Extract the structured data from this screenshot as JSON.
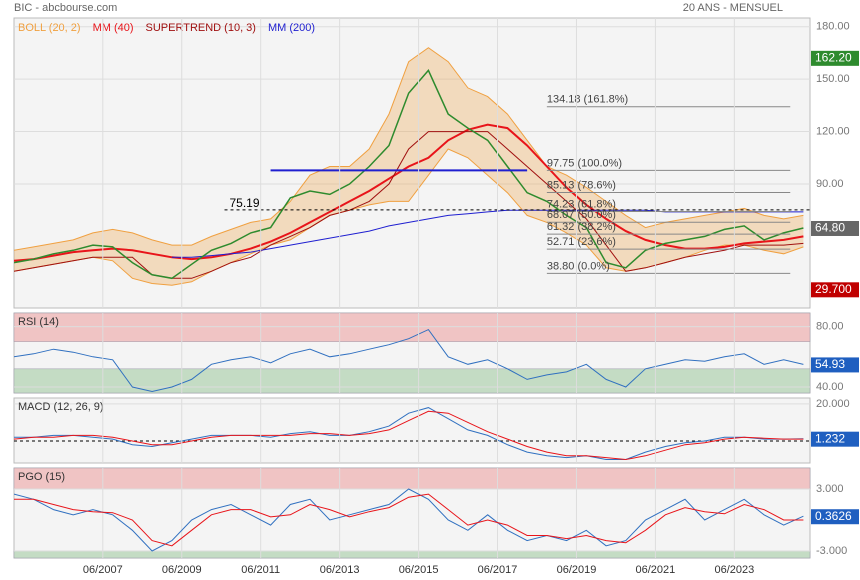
{
  "header": {
    "title": "BIC - abcbourse.com",
    "period": "20 ANS - MENSUEL"
  },
  "chart_data": [
    {
      "type": "line",
      "x": [
        "2005-03",
        "2005-09",
        "2006-03",
        "2006-09",
        "2007-03",
        "2007-09",
        "2008-03",
        "2008-09",
        "2009-03",
        "2009-09",
        "2010-03",
        "2010-09",
        "2011-03",
        "2011-09",
        "2012-03",
        "2012-09",
        "2013-03",
        "2013-09",
        "2014-03",
        "2014-09",
        "2015-03",
        "2015-09",
        "2016-03",
        "2016-09",
        "2017-03",
        "2017-09",
        "2018-03",
        "2018-09",
        "2019-03",
        "2019-09",
        "2020-03",
        "2020-09",
        "2021-03",
        "2021-09",
        "2022-03",
        "2022-09",
        "2023-03",
        "2023-09",
        "2024-03",
        "2024-09",
        "2025-03"
      ],
      "xlim": [
        "2005-03",
        "2025-05"
      ],
      "ylim": [
        19,
        185
      ],
      "yticks": [
        {
          "value": 180,
          "label": "180.00"
        },
        {
          "value": 150,
          "label": "150.00"
        },
        {
          "value": 120,
          "label": "120.00"
        },
        {
          "value": 90,
          "label": "90.00"
        }
      ],
      "series": [
        {
          "type": "band",
          "name": "BOLL (20, 2)",
          "color": "#f0a040",
          "upper": [
            52,
            54,
            56,
            58,
            62,
            64,
            62,
            58,
            55,
            55,
            60,
            64,
            68,
            70,
            80,
            95,
            100,
            100,
            110,
            130,
            160,
            168,
            160,
            145,
            140,
            130,
            115,
            100,
            95,
            88,
            80,
            72,
            65,
            68,
            70,
            72,
            74,
            76,
            72,
            70,
            72
          ],
          "lower": [
            40,
            42,
            44,
            46,
            48,
            46,
            36,
            33,
            32,
            34,
            40,
            45,
            50,
            55,
            58,
            65,
            72,
            75,
            78,
            80,
            80,
            95,
            110,
            105,
            95,
            85,
            72,
            68,
            62,
            55,
            42,
            40,
            42,
            45,
            48,
            52,
            55,
            55,
            52,
            50,
            54
          ]
        },
        {
          "name": "MM (40)",
          "color": "#e8141a",
          "width": 2,
          "values": [
            46,
            47,
            49,
            51,
            52,
            53,
            52,
            50,
            48,
            47,
            48,
            50,
            53,
            57,
            62,
            68,
            74,
            80,
            86,
            93,
            100,
            105,
            115,
            121,
            124,
            122,
            112,
            100,
            88,
            78,
            70,
            63,
            58,
            55,
            53,
            53,
            54,
            56,
            57,
            58,
            60
          ]
        },
        {
          "name": "SUPERTREND (10, 3)",
          "color": "#a01010",
          "width": 1,
          "values": [
            40,
            42,
            44,
            46,
            48,
            48,
            48,
            38,
            36,
            36,
            40,
            45,
            48,
            55,
            60,
            65,
            72,
            75,
            80,
            90,
            110,
            120,
            120,
            120,
            120,
            110,
            100,
            90,
            80,
            70,
            55,
            40,
            42,
            45,
            48,
            50,
            52,
            55,
            55,
            55,
            56
          ]
        },
        {
          "name": "MM (200)",
          "color": "#1f1fd0",
          "width": 1,
          "values": [
            null,
            null,
            null,
            null,
            null,
            null,
            null,
            null,
            48,
            48,
            49,
            50,
            51,
            53,
            55,
            57,
            59,
            61,
            63,
            66,
            68,
            70,
            72,
            73,
            74,
            75,
            75,
            75,
            75,
            75,
            75,
            75,
            75,
            74,
            74,
            74,
            74,
            74,
            74,
            74,
            74
          ]
        },
        {
          "color": "#2e8b2e",
          "width": 1.5,
          "values": [
            45,
            47,
            50,
            52,
            55,
            54,
            45,
            38,
            36,
            44,
            52,
            56,
            62,
            65,
            82,
            86,
            84,
            90,
            100,
            112,
            142,
            155,
            130,
            122,
            115,
            100,
            85,
            80,
            72,
            65,
            45,
            42,
            52,
            56,
            58,
            60,
            64,
            66,
            58,
            62,
            64.8
          ]
        }
      ],
      "levels": [
        {
          "value": 75.19,
          "label": "75.19",
          "from": "2010-07",
          "to": "2025-05",
          "color": "#000000",
          "dashed": true
        },
        {
          "value": 97.75,
          "from": "2011-09",
          "to": "2018-03",
          "color": "#1f1fd0",
          "width": 2
        }
      ],
      "fib": {
        "from": "2018-09",
        "to": "2024-11",
        "color": "#888888",
        "levels": [
          {
            "value": 134.18,
            "label": "134.18 (161.8%)"
          },
          {
            "value": 97.75,
            "label": "97.75 (100.0%)"
          },
          {
            "value": 85.13,
            "label": "85.13 (78.6%)"
          },
          {
            "value": 74.23,
            "label": "74.23 (61.8%)"
          },
          {
            "value": 68.07,
            "label": "68.07 (50.0%)"
          },
          {
            "value": 61.32,
            "label": "61.32 (38.2%)"
          },
          {
            "value": 52.71,
            "label": "52.71 (23.6%)"
          },
          {
            "value": 38.8,
            "label": "38.80 (0.0%)"
          }
        ]
      },
      "markers": [
        {
          "value": 162.2,
          "label": "162.20",
          "color": "#2e8b2e"
        },
        {
          "value": 64.8,
          "label": "64.80",
          "color": "#666666"
        },
        {
          "value": 29.7,
          "label": "29.700",
          "color": "#c00000"
        }
      ]
    },
    {
      "type": "line",
      "title": "RSI (14)",
      "ylim": [
        36,
        89
      ],
      "yticks": [
        {
          "value": 80,
          "label": "80.00"
        },
        {
          "value": 40,
          "label": "40.00"
        }
      ],
      "zones": [
        {
          "from": 70,
          "to": 89,
          "color": "#f0c4c4"
        },
        {
          "from": 36,
          "to": 52,
          "color": "#c4dcc4"
        }
      ],
      "series": [
        {
          "color": "#3070c0",
          "width": 1,
          "values": [
            60,
            62,
            65,
            63,
            60,
            58,
            40,
            37,
            40,
            45,
            55,
            58,
            60,
            56,
            62,
            65,
            60,
            62,
            65,
            68,
            72,
            78,
            60,
            55,
            58,
            52,
            45,
            48,
            50,
            55,
            45,
            40,
            52,
            55,
            58,
            57,
            60,
            62,
            55,
            58,
            54.93
          ]
        }
      ],
      "markers": [
        {
          "value": 54.93,
          "label": "54.93",
          "color": "#1f5fc0"
        }
      ]
    },
    {
      "type": "line",
      "title": "MACD (12, 26, 9)",
      "ylim": [
        -11.9,
        23.2
      ],
      "yticks": [
        {
          "value": 20,
          "label": "20.000"
        }
      ],
      "hline": 0,
      "series": [
        {
          "color": "#3070c0",
          "width": 1,
          "values": [
            2,
            2,
            3,
            3,
            2,
            1,
            -2,
            -3,
            -1,
            1,
            3,
            3,
            3,
            2,
            4,
            5,
            3,
            3,
            5,
            8,
            15,
            18,
            12,
            6,
            3,
            -2,
            -6,
            -8,
            -9,
            -8,
            -10,
            -10,
            -6,
            -3,
            -1,
            0,
            2,
            2,
            1,
            1,
            1.232
          ]
        },
        {
          "color": "#e8141a",
          "width": 1,
          "values": [
            1,
            2,
            2,
            3,
            3,
            2,
            0,
            -2,
            -2,
            0,
            2,
            3,
            3,
            3,
            3,
            4,
            4,
            3,
            4,
            6,
            11,
            16,
            15,
            10,
            5,
            1,
            -3,
            -6,
            -8,
            -8,
            -9,
            -10,
            -8,
            -5,
            -2,
            -1,
            1,
            2,
            1.5,
            1,
            1
          ]
        }
      ],
      "markers": [
        {
          "value": 1.232,
          "label": "1.232",
          "color": "#1f5fc0"
        }
      ]
    },
    {
      "type": "line",
      "title": "PGO (15)",
      "ylim": [
        -3.68,
        5.03
      ],
      "yticks": [
        {
          "value": 3,
          "label": "3.000"
        },
        {
          "value": -3,
          "label": "-3.000"
        }
      ],
      "zones": [
        {
          "from": 3,
          "to": 5.03,
          "color": "#f0c4c4"
        },
        {
          "from": -3.68,
          "to": -3,
          "color": "#c4dcc4"
        }
      ],
      "xticks": [
        {
          "value": "2007-06",
          "label": "06/2007"
        },
        {
          "value": "2009-06",
          "label": "06/2009"
        },
        {
          "value": "2011-06",
          "label": "06/2011"
        },
        {
          "value": "2013-06",
          "label": "06/2013"
        },
        {
          "value": "2015-06",
          "label": "06/2015"
        },
        {
          "value": "2017-06",
          "label": "06/2017"
        },
        {
          "value": "2019-06",
          "label": "06/2019"
        },
        {
          "value": "2021-06",
          "label": "06/2021"
        },
        {
          "value": "2023-06",
          "label": "06/2023"
        }
      ],
      "series": [
        {
          "color": "#3070c0",
          "width": 1,
          "values": [
            2.5,
            2,
            1,
            0.5,
            1,
            0.5,
            -1,
            -3,
            -2,
            0,
            1,
            1.5,
            0.5,
            -0.5,
            1.5,
            2,
            0,
            0.5,
            1,
            1.5,
            3,
            2,
            0,
            -1,
            0.5,
            -1,
            -2,
            -1.5,
            -2,
            -1,
            -2.5,
            -2,
            0,
            1,
            2,
            0,
            1,
            2,
            0.5,
            -0.5,
            0.3626
          ]
        },
        {
          "color": "#e8141a",
          "width": 1,
          "values": [
            2,
            2,
            1.5,
            1,
            0.8,
            0.7,
            0,
            -2,
            -2.5,
            -1,
            0.5,
            1,
            1,
            0.3,
            0.5,
            1.5,
            1,
            0.3,
            0.8,
            1.2,
            2.2,
            2.5,
            1,
            -0.5,
            0,
            -0.5,
            -1.5,
            -1.5,
            -1.8,
            -1.5,
            -2,
            -2.2,
            -1,
            0.5,
            1.2,
            0.8,
            0.6,
            1.5,
            1,
            0,
            0
          ]
        }
      ],
      "markers": [
        {
          "value": 0.3626,
          "label": "0.3626",
          "color": "#1f5fc0"
        }
      ]
    }
  ]
}
